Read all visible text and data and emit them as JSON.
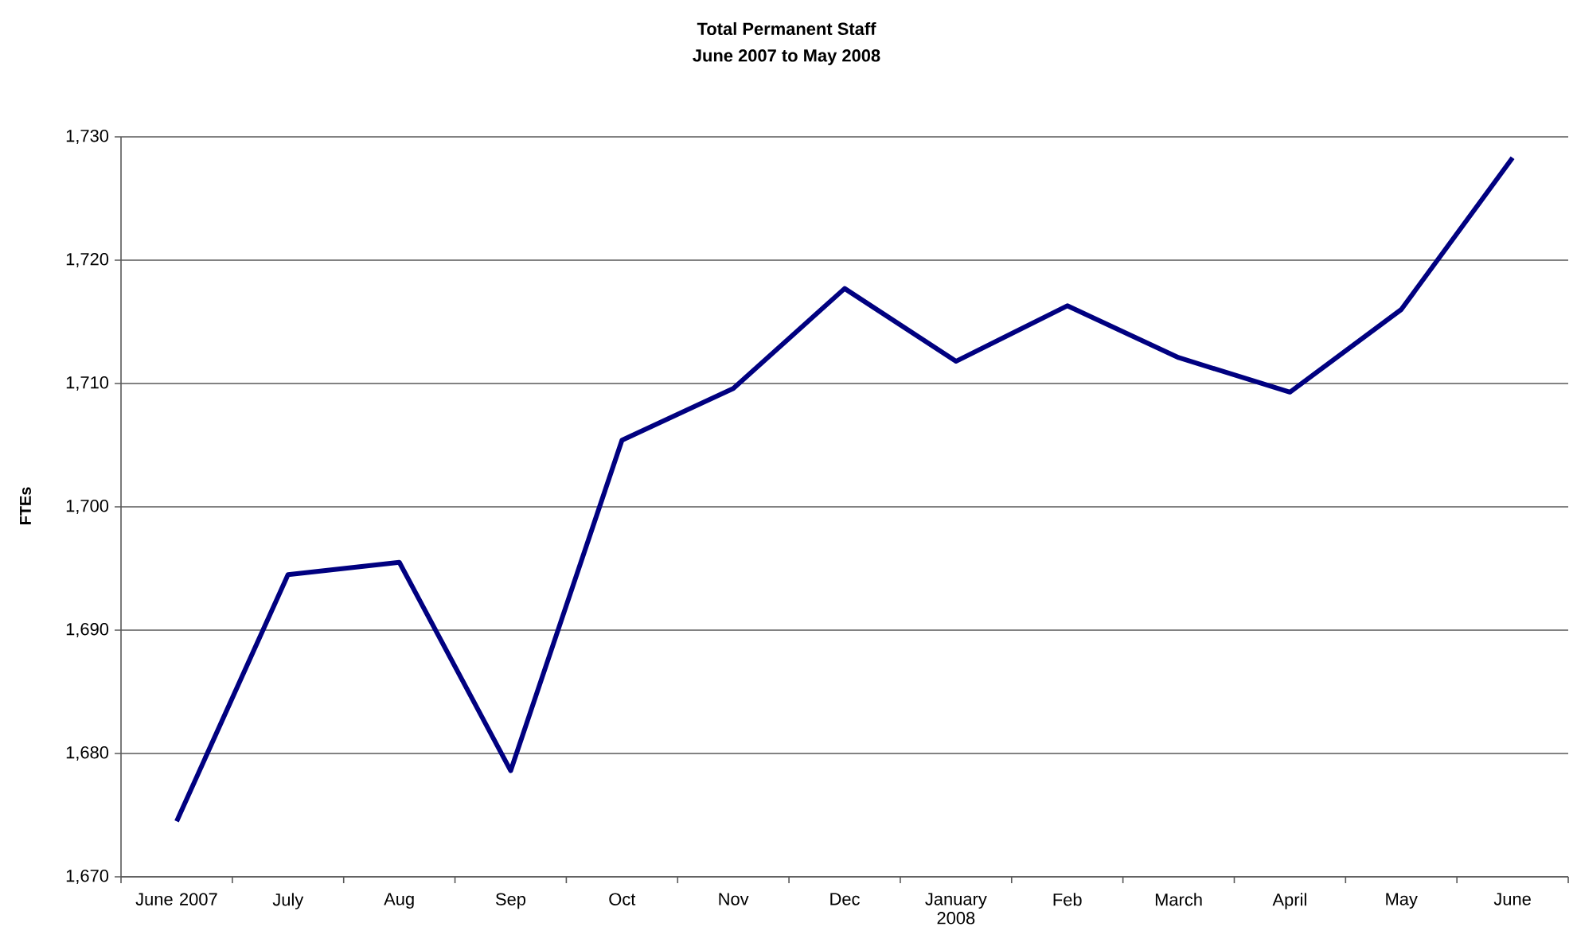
{
  "chart_data": {
    "type": "line",
    "title": "Total Permanent Staff",
    "subtitle": "June 2007 to May 2008",
    "ylabel": "FTEs",
    "categories": [
      "June 2007",
      "July",
      "Aug",
      "Sep",
      "Oct",
      "Nov",
      "Dec",
      "January 2008",
      "Feb",
      "March",
      "April",
      "May",
      "June"
    ],
    "series": [
      {
        "color": "#000080",
        "values": [
          1674.5,
          1694.5,
          1695.5,
          1678.6,
          1705.4,
          1709.6,
          1717.7,
          1711.8,
          1716.3,
          1712.1,
          1709.3,
          1716.0,
          1728.3
        ]
      }
    ],
    "ylim": [
      1670,
      1730
    ],
    "yticks": [
      {
        "value": 1670,
        "label": "1,670"
      },
      {
        "value": 1680,
        "label": "1,680"
      },
      {
        "value": 1690,
        "label": "1,690"
      },
      {
        "value": 1700,
        "label": "1,700"
      },
      {
        "value": 1710,
        "label": "1,710"
      },
      {
        "value": 1720,
        "label": "1,720"
      },
      {
        "value": 1730,
        "label": "1,730"
      }
    ],
    "grid": "y",
    "marker": "none",
    "line_style": "solid",
    "legend": false
  }
}
